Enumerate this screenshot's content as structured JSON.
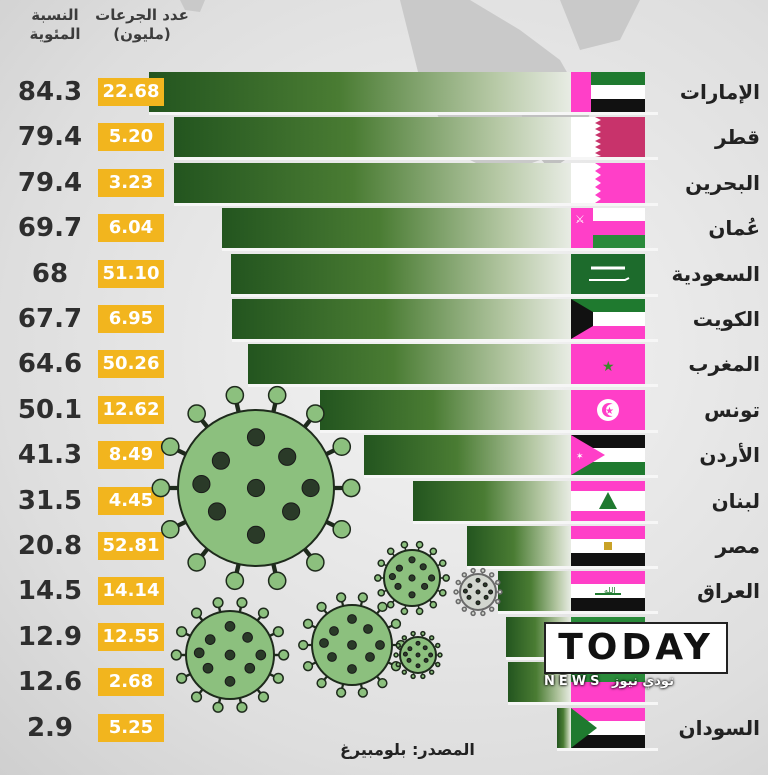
{
  "header": {
    "percentage_label": "النسبة المئوية",
    "doses_label": "عدد الجرعات",
    "doses_unit": "(مليون)"
  },
  "source_text": "المصدر: بلومبيرغ",
  "logo": {
    "text": "TODAY",
    "subtitle": "NEWS تودي نيوز"
  },
  "colors": {
    "bar_dark": "#23551f",
    "dose_badge": "#f2b51e",
    "flag_highlight": "#ff3fc8"
  },
  "chart_data": {
    "type": "bar",
    "orientation": "horizontal",
    "categories": [
      "الإمارات",
      "قطر",
      "البحرين",
      "عُمان",
      "السعودية",
      "الكويت",
      "المغرب",
      "تونس",
      "الأردن",
      "لبنان",
      "مصر",
      "العراق",
      "",
      "",
      "السودان"
    ],
    "series": [
      {
        "values": [
          84.3,
          79.4,
          79.4,
          69.7,
          68,
          67.7,
          64.6,
          50.1,
          41.3,
          31.5,
          20.8,
          14.5,
          12.9,
          12.6,
          2.9
        ]
      }
    ],
    "doses": [
      22.68,
      5.2,
      3.23,
      6.04,
      51.1,
      6.95,
      50.26,
      12.62,
      8.49,
      4.45,
      52.81,
      14.14,
      12.55,
      2.68,
      5.25
    ],
    "value_labels": [
      "84.3",
      "79.4",
      "79.4",
      "69.7",
      "68",
      "67.7",
      "64.6",
      "50.1",
      "41.3",
      "31.5",
      "20.8",
      "14.5",
      "12.9",
      "12.6",
      "2.9"
    ],
    "dose_labels": [
      "22.68",
      "5.20",
      "3.23",
      "6.04",
      "51.10",
      "6.95",
      "50.26",
      "12.62",
      "8.49",
      "4.45",
      "52.81",
      "14.14",
      "12.55",
      "2.68",
      "5.25"
    ],
    "flags": [
      "uae-flag",
      "qatar-flag",
      "bahrain-flag",
      "oman-flag",
      "saudi-flag",
      "kuwait-flag",
      "morocco-flag",
      "tunisia-flag",
      "jordan-flag",
      "lebanon-flag",
      "egypt-flag",
      "iraq-flag",
      "unknown-flag",
      "unknown-flag",
      "sudan-flag"
    ],
    "xlim": [
      0,
      100
    ],
    "grid": false,
    "legend": "none"
  }
}
